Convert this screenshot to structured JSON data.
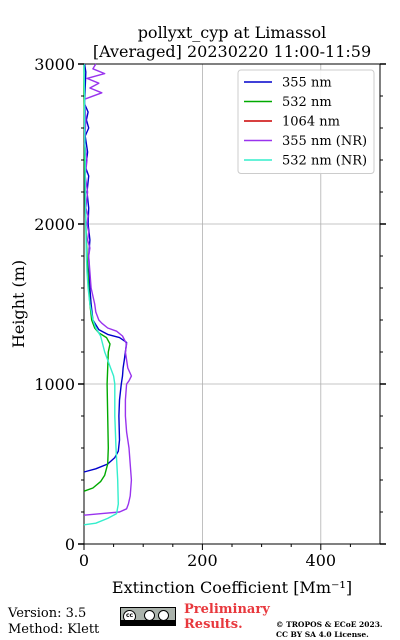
{
  "chart_data": {
    "type": "line",
    "title": "pollyxt_cyp at Limassol",
    "subtitle": "[Averaged] 20230220 11:00-11:59",
    "xlabel": "Extinction Coefficient [Mm⁻¹]",
    "ylabel": "Height (m)",
    "xlim": [
      0,
      500
    ],
    "ylim": [
      0,
      3000
    ],
    "xticks": [
      0,
      200,
      400
    ],
    "yticks": [
      0,
      1000,
      2000,
      3000
    ],
    "grid": true,
    "legend_position": "top-right",
    "series": [
      {
        "name": "355 nm",
        "color": "#0000cc",
        "points": [
          [
            0,
            450
          ],
          [
            20,
            470
          ],
          [
            40,
            500
          ],
          [
            52,
            540
          ],
          [
            58,
            580
          ],
          [
            60,
            650
          ],
          [
            59,
            800
          ],
          [
            60,
            900
          ],
          [
            63,
            1000
          ],
          [
            65,
            1050
          ],
          [
            66,
            1100
          ],
          [
            68,
            1150
          ],
          [
            70,
            1200
          ],
          [
            72,
            1260
          ],
          [
            60,
            1290
          ],
          [
            40,
            1310
          ],
          [
            25,
            1340
          ],
          [
            15,
            1400
          ],
          [
            12,
            1500
          ],
          [
            10,
            1600
          ],
          [
            9,
            1700
          ],
          [
            8,
            1800
          ],
          [
            10,
            1900
          ],
          [
            7,
            2000
          ],
          [
            8,
            2100
          ],
          [
            5,
            2200
          ],
          [
            8,
            2300
          ],
          [
            3,
            2350
          ],
          [
            6,
            2450
          ],
          [
            2,
            2550
          ],
          [
            8,
            2600
          ],
          [
            4,
            2650
          ],
          [
            7,
            2700
          ],
          [
            1,
            2750
          ],
          [
            2,
            2850
          ],
          [
            3,
            2950
          ],
          [
            1,
            3000
          ]
        ]
      },
      {
        "name": "532 nm",
        "color": "#00aa00",
        "points": [
          [
            0,
            330
          ],
          [
            15,
            350
          ],
          [
            28,
            390
          ],
          [
            35,
            430
          ],
          [
            40,
            500
          ],
          [
            41,
            600
          ],
          [
            40,
            800
          ],
          [
            39,
            1000
          ],
          [
            40,
            1100
          ],
          [
            41,
            1200
          ],
          [
            44,
            1250
          ],
          [
            38,
            1290
          ],
          [
            25,
            1320
          ],
          [
            18,
            1350
          ],
          [
            13,
            1400
          ],
          [
            10,
            1500
          ],
          [
            8,
            1600
          ],
          [
            5,
            1800
          ],
          [
            3,
            2000
          ],
          [
            2,
            2200
          ],
          [
            1,
            2400
          ],
          [
            1,
            2600
          ],
          [
            0,
            2800
          ],
          [
            0,
            3000
          ]
        ]
      },
      {
        "name": "1064 nm",
        "color": "#cc0000",
        "points": []
      },
      {
        "name": "355 nm (NR)",
        "color": "#9933ee",
        "points": [
          [
            0,
            180
          ],
          [
            30,
            190
          ],
          [
            60,
            200
          ],
          [
            72,
            220
          ],
          [
            75,
            250
          ],
          [
            78,
            300
          ],
          [
            80,
            400
          ],
          [
            78,
            500
          ],
          [
            76,
            600
          ],
          [
            72,
            700
          ],
          [
            70,
            800
          ],
          [
            70,
            900
          ],
          [
            72,
            1000
          ],
          [
            76,
            1020
          ],
          [
            80,
            1050
          ],
          [
            74,
            1100
          ],
          [
            72,
            1150
          ],
          [
            70,
            1200
          ],
          [
            72,
            1250
          ],
          [
            65,
            1300
          ],
          [
            55,
            1330
          ],
          [
            40,
            1350
          ],
          [
            30,
            1380
          ],
          [
            25,
            1400
          ],
          [
            20,
            1450
          ],
          [
            18,
            1500
          ],
          [
            15,
            1550
          ],
          [
            12,
            1600
          ],
          [
            10,
            1700
          ],
          [
            8,
            1800
          ],
          [
            10,
            1850
          ],
          [
            6,
            1900
          ],
          [
            8,
            1950
          ],
          [
            5,
            2000
          ],
          [
            7,
            2050
          ],
          [
            3,
            2100
          ],
          [
            6,
            2200
          ],
          [
            2,
            2300
          ],
          [
            5,
            2400
          ],
          [
            1,
            2500
          ],
          [
            3,
            2650
          ],
          [
            1,
            2780
          ],
          [
            30,
            2820
          ],
          [
            10,
            2850
          ],
          [
            25,
            2880
          ],
          [
            5,
            2910
          ],
          [
            35,
            2940
          ],
          [
            15,
            2970
          ],
          [
            20,
            3000
          ]
        ]
      },
      {
        "name": "532 nm (NR)",
        "color": "#33eecc",
        "points": [
          [
            0,
            120
          ],
          [
            20,
            130
          ],
          [
            40,
            160
          ],
          [
            55,
            190
          ],
          [
            58,
            250
          ],
          [
            57,
            400
          ],
          [
            54,
            600
          ],
          [
            52,
            800
          ],
          [
            52,
            1000
          ],
          [
            50,
            1050
          ],
          [
            45,
            1100
          ],
          [
            40,
            1150
          ],
          [
            35,
            1200
          ],
          [
            28,
            1300
          ],
          [
            20,
            1350
          ],
          [
            15,
            1400
          ],
          [
            10,
            1500
          ],
          [
            7,
            1600
          ],
          [
            5,
            1700
          ],
          [
            4,
            1800
          ],
          [
            3,
            2000
          ],
          [
            2,
            2200
          ],
          [
            2,
            2400
          ],
          [
            1,
            2600
          ],
          [
            1,
            2800
          ],
          [
            0,
            3000
          ]
        ]
      }
    ]
  },
  "footer": {
    "version": "Version: 3.5",
    "method": "Method: Klett",
    "license_badge": "cc by sa",
    "preliminary_line1": "Preliminary",
    "preliminary_line2": "Results.",
    "copyright_line1": "© TROPOS & ECoE 2023.",
    "copyright_line2": "CC BY SA 4.0 License."
  }
}
